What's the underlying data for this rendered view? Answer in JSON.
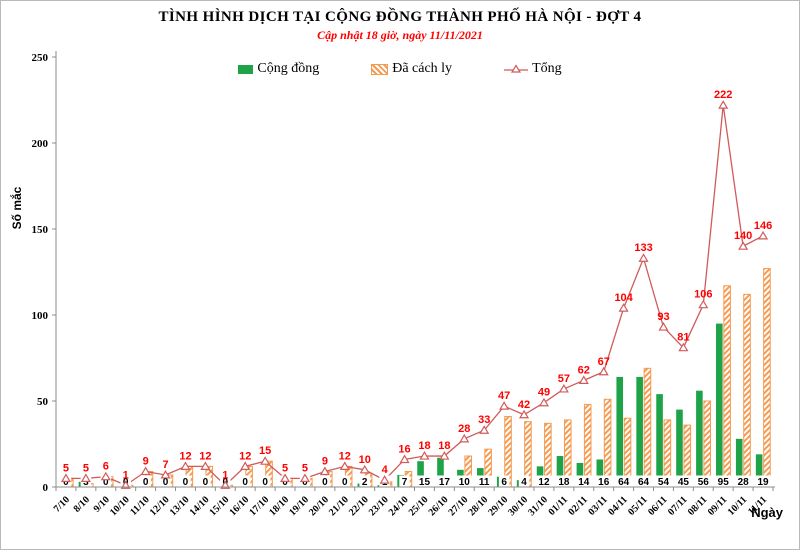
{
  "colors": {
    "community": "#1fa349",
    "quarantine": "#f59b51",
    "total_line": "#d15b5b",
    "total_label": "#ff0000"
  },
  "chart_data": {
    "type": "bar+line",
    "title": "TÌNH HÌNH DỊCH TẠI CỘNG ĐỒNG THÀNH PHỐ HÀ NỘI - ĐỢT 4",
    "subtitle": "Cập nhật 18 giờ, ngày 11/11/2021",
    "xlabel": "Ngày",
    "ylabel": "Số mắc",
    "ylim": [
      0,
      250
    ],
    "yticks": [
      0,
      50,
      100,
      150,
      200,
      250
    ],
    "grid": false,
    "legend_position": "top-center",
    "categories": [
      "7/10",
      "8/10",
      "9/10",
      "10/10",
      "11/10",
      "12/10",
      "13/10",
      "14/10",
      "15/10",
      "16/10",
      "17/10",
      "18/10",
      "19/10",
      "20/10",
      "21/10",
      "22/10",
      "23/10",
      "24/10",
      "25/10",
      "26/10",
      "27/10",
      "28/10",
      "29/10",
      "30/10",
      "31/10",
      "01/11",
      "02/11",
      "03/11",
      "04/11",
      "05/11",
      "06/11",
      "07/11",
      "08/11",
      "09/11",
      "10/11",
      "11/11"
    ],
    "series": [
      {
        "name": "Cộng đồng",
        "type": "bar",
        "style": "solid",
        "values": [
          0,
          3,
          0,
          0,
          0,
          0,
          0,
          0,
          0,
          0,
          0,
          0,
          0,
          0,
          0,
          2,
          1,
          7,
          15,
          17,
          10,
          11,
          6,
          4,
          12,
          18,
          14,
          16,
          64,
          64,
          54,
          45,
          56,
          95,
          28,
          19
        ]
      },
      {
        "name": "Đã cách ly",
        "type": "bar",
        "style": "hatched",
        "values": [
          5,
          2,
          6,
          1,
          9,
          7,
          12,
          12,
          1,
          12,
          15,
          5,
          5,
          9,
          12,
          8,
          3,
          9,
          3,
          1,
          18,
          22,
          41,
          38,
          37,
          39,
          48,
          51,
          40,
          69,
          39,
          36,
          50,
          117,
          112,
          127
        ]
      },
      {
        "name": "Tổng",
        "type": "line",
        "marker": "open-triangle",
        "values": [
          5,
          5,
          6,
          1,
          9,
          7,
          12,
          12,
          1,
          12,
          15,
          5,
          5,
          9,
          12,
          10,
          4,
          16,
          18,
          18,
          28,
          33,
          47,
          42,
          49,
          57,
          62,
          67,
          104,
          133,
          93,
          81,
          106,
          222,
          140,
          146
        ]
      }
    ]
  }
}
